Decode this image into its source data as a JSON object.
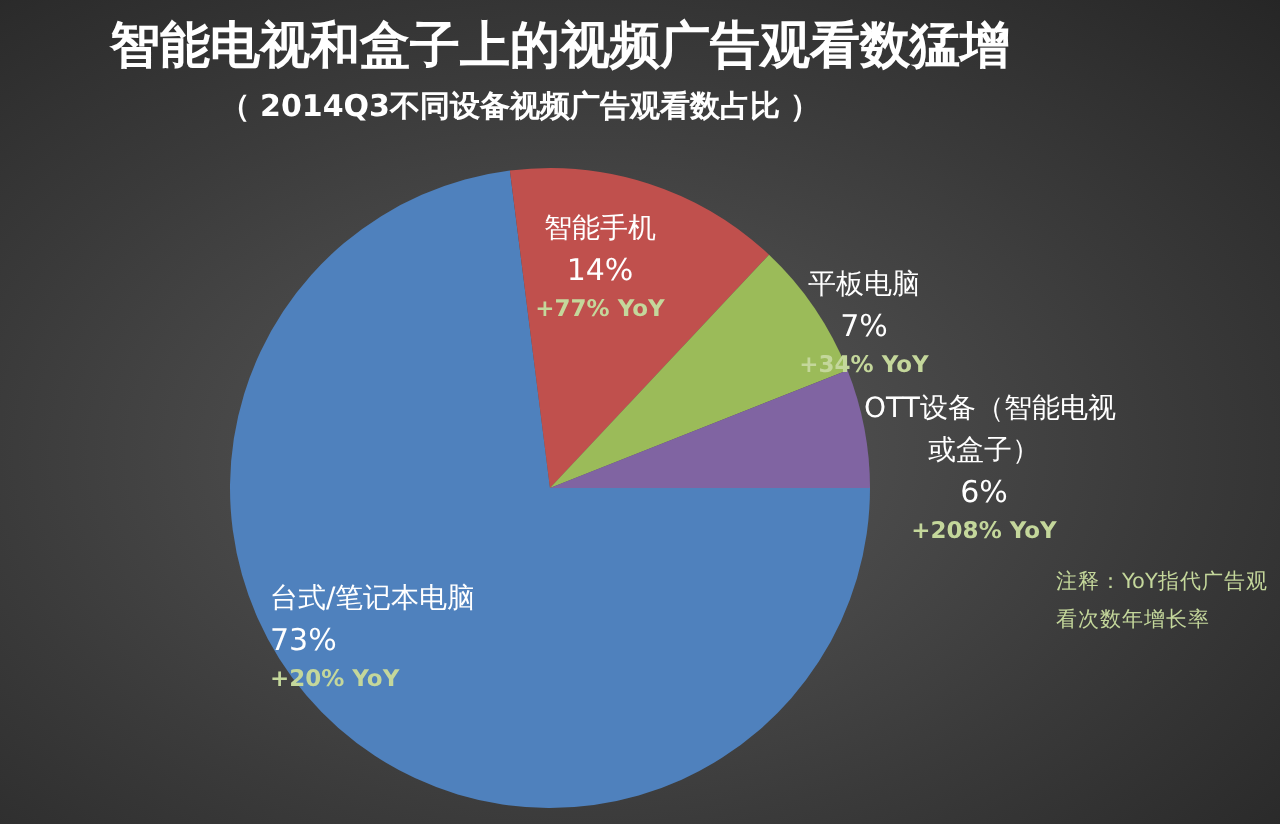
{
  "chart_data": {
    "type": "pie",
    "title": "智能电视和盒子上的视频广告观看数猛增",
    "subtitle": "（ 2014Q3不同设备视频广告观看数占比 ）",
    "categories": [
      "台式/笔记本电脑",
      "智能手机",
      "平板电脑",
      "OTT设备（智能电视或盒子）"
    ],
    "values": [
      73,
      14,
      7,
      6
    ],
    "colors": [
      "#4f81bd",
      "#c0504d",
      "#9bbb59",
      "#8064a2"
    ],
    "value_labels": [
      "73%",
      "14%",
      "7%",
      "6%"
    ],
    "annotations": [
      "+20% YoY",
      "+77% YoY",
      "+34% YoY",
      "+208% YoY",
      "注释：YoY指代广告观看次数年增长率"
    ],
    "legend": false
  }
}
